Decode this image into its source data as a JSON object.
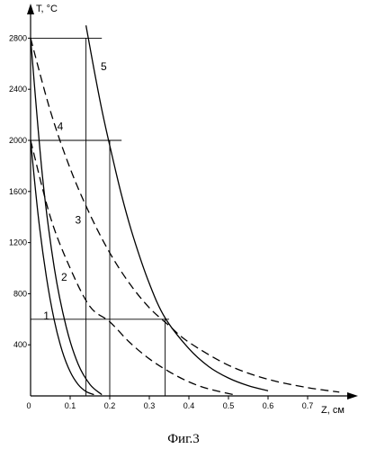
{
  "chart_data": {
    "type": "line",
    "title": "",
    "caption": "Фиг.3",
    "xlabel": "Z, см",
    "ylabel": "T, °C",
    "xlim": [
      0,
      0.8
    ],
    "ylim": [
      0,
      3000
    ],
    "x_ticks": [
      {
        "value": 0,
        "label": "0"
      },
      {
        "value": 0.1,
        "label": "0.1"
      },
      {
        "value": 0.2,
        "label": "0.2"
      },
      {
        "value": 0.3,
        "label": "0.3"
      },
      {
        "value": 0.4,
        "label": "0.4"
      },
      {
        "value": 0.5,
        "label": "0.5"
      },
      {
        "value": 0.6,
        "label": "0.6"
      },
      {
        "value": 0.7,
        "label": "0.7"
      }
    ],
    "y_ticks": [
      {
        "value": 400,
        "label": "400"
      },
      {
        "value": 800,
        "label": "800"
      },
      {
        "value": 1200,
        "label": "1200"
      },
      {
        "value": 1600,
        "label": "1600"
      },
      {
        "value": 2000,
        "label": "2000"
      },
      {
        "value": 2400,
        "label": "2400"
      },
      {
        "value": 2800,
        "label": "2800"
      }
    ],
    "series": [
      {
        "name": "1",
        "dash": "solid",
        "x": [
          0,
          0.02,
          0.04,
          0.06,
          0.08,
          0.1,
          0.12,
          0.14,
          0.16
        ],
        "y": [
          2000,
          1390,
          930,
          590,
          350,
          190,
          90,
          35,
          10
        ]
      },
      {
        "name": "2",
        "dash": "solid",
        "x": [
          0,
          0.03,
          0.06,
          0.09,
          0.12,
          0.15,
          0.18
        ],
        "y": [
          2800,
          1720,
          1000,
          540,
          250,
          90,
          10
        ]
      },
      {
        "name": "3",
        "dash": "dashed",
        "x": [
          0,
          0.05,
          0.1,
          0.15,
          0.2,
          0.25,
          0.3,
          0.35,
          0.4,
          0.45,
          0.52
        ],
        "y": [
          2000,
          1400,
          1000,
          700,
          580,
          420,
          290,
          190,
          110,
          55,
          5
        ]
      },
      {
        "name": "4",
        "dash": "dashed",
        "x": [
          0,
          0.05,
          0.1,
          0.15,
          0.2,
          0.25,
          0.3,
          0.35,
          0.4,
          0.5,
          0.6,
          0.7,
          0.78
        ],
        "y": [
          2800,
          2230,
          1780,
          1420,
          1120,
          880,
          690,
          550,
          420,
          240,
          130,
          65,
          30
        ]
      },
      {
        "name": "5",
        "dash": "solid",
        "x": [
          0.14,
          0.16,
          0.18,
          0.2,
          0.23,
          0.26,
          0.3,
          0.34,
          0.4,
          0.45,
          0.5,
          0.55,
          0.6
        ],
        "y": [
          2900,
          2560,
          2240,
          1960,
          1570,
          1240,
          880,
          610,
          370,
          230,
          140,
          80,
          40
        ]
      }
    ],
    "series_label_positions": [
      {
        "name": "1",
        "x": 0.04,
        "y": 600
      },
      {
        "name": "2",
        "x": 0.085,
        "y": 900
      },
      {
        "name": "3",
        "x": 0.12,
        "y": 1350
      },
      {
        "name": "4",
        "x": 0.075,
        "y": 2080
      },
      {
        "name": "5",
        "x": 0.185,
        "y": 2550
      }
    ],
    "reference_lines": [
      {
        "orientation": "horizontal",
        "value": 2800,
        "from": 0,
        "to": 0.18
      },
      {
        "orientation": "horizontal",
        "value": 2000,
        "from": 0,
        "to": 0.23
      },
      {
        "orientation": "horizontal",
        "value": 600,
        "from": 0,
        "to": 0.35
      },
      {
        "orientation": "vertical",
        "value": 0.14,
        "from": 0,
        "to": 2800
      },
      {
        "orientation": "vertical",
        "value": 0.2,
        "from": 0,
        "to": 2000
      },
      {
        "orientation": "vertical",
        "value": 0.34,
        "from": 0,
        "to": 600
      }
    ],
    "grid": false
  }
}
